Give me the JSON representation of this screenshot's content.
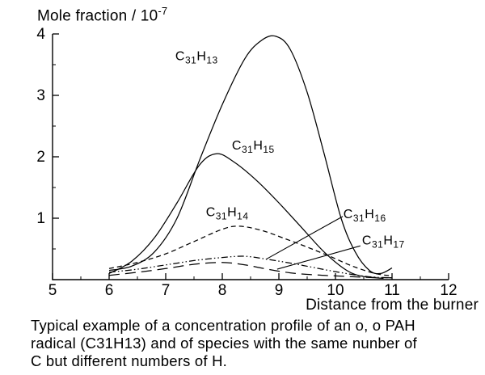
{
  "page": {
    "background": "#ffffff",
    "ink": "#000000"
  },
  "chart_data": {
    "type": "line",
    "title": {
      "text": "Mole fraction / 10",
      "exponent": "-7"
    },
    "xlabel": "Distance from the burner",
    "ylabel": "Mole fraction / 10^-7",
    "xlim": [
      5,
      12
    ],
    "ylim": [
      0,
      4
    ],
    "x_major_ticks": [
      5,
      6,
      7,
      8,
      9,
      10,
      11,
      12
    ],
    "x_minor_ticks": [
      5.5,
      6.5,
      7.5,
      8.5,
      9.5,
      10.5,
      11.5
    ],
    "y_major_ticks": [
      1,
      2,
      3,
      4
    ],
    "y_minor_ticks": [
      0.5,
      1.5,
      2.5,
      3.5
    ],
    "grid": false,
    "legend": "inline-labels",
    "series": [
      {
        "name": "C31H13",
        "label": "C31H13",
        "line_style": "solid",
        "label_pos": [
          7.17,
          3.57
        ],
        "points": [
          [
            6.0,
            0.15
          ],
          [
            6.4,
            0.22
          ],
          [
            6.8,
            0.45
          ],
          [
            7.2,
            1.0
          ],
          [
            7.6,
            1.95
          ],
          [
            8.0,
            2.85
          ],
          [
            8.4,
            3.6
          ],
          [
            8.7,
            3.9
          ],
          [
            8.95,
            3.96
          ],
          [
            9.2,
            3.75
          ],
          [
            9.5,
            3.05
          ],
          [
            9.8,
            2.05
          ],
          [
            10.1,
            1.0
          ],
          [
            10.35,
            0.45
          ],
          [
            10.6,
            0.15
          ],
          [
            10.8,
            0.1
          ],
          [
            11.0,
            0.19
          ]
        ]
      },
      {
        "name": "C31H15",
        "label": "C31H15",
        "line_style": "solid",
        "label_pos": [
          8.17,
          2.12
        ],
        "points": [
          [
            6.0,
            0.1
          ],
          [
            6.4,
            0.3
          ],
          [
            6.8,
            0.68
          ],
          [
            7.2,
            1.25
          ],
          [
            7.6,
            1.87
          ],
          [
            7.9,
            2.05
          ],
          [
            8.2,
            1.92
          ],
          [
            8.6,
            1.62
          ],
          [
            9.0,
            1.25
          ],
          [
            9.4,
            0.85
          ],
          [
            9.8,
            0.45
          ],
          [
            10.2,
            0.15
          ],
          [
            10.5,
            0.05
          ],
          [
            10.85,
            0.02
          ]
        ]
      },
      {
        "name": "C31H14",
        "label": "C31H14",
        "line_style": "dashed",
        "label_pos": [
          7.71,
          1.03
        ],
        "points": [
          [
            6.0,
            0.18
          ],
          [
            6.5,
            0.28
          ],
          [
            7.0,
            0.42
          ],
          [
            7.5,
            0.62
          ],
          [
            8.0,
            0.82
          ],
          [
            8.3,
            0.87
          ],
          [
            8.7,
            0.8
          ],
          [
            9.1,
            0.67
          ],
          [
            9.5,
            0.53
          ],
          [
            9.9,
            0.38
          ],
          [
            10.3,
            0.22
          ],
          [
            10.7,
            0.1
          ],
          [
            11.0,
            0.06
          ]
        ]
      },
      {
        "name": "C31H16",
        "label": "C31H16",
        "line_style": "dash-dot-dot",
        "label_pos": [
          10.14,
          1.0
        ],
        "points": [
          [
            6.0,
            0.12
          ],
          [
            6.5,
            0.17
          ],
          [
            7.0,
            0.24
          ],
          [
            7.5,
            0.31
          ],
          [
            8.0,
            0.36
          ],
          [
            8.4,
            0.38
          ],
          [
            8.8,
            0.33
          ],
          [
            9.2,
            0.27
          ],
          [
            9.6,
            0.2
          ],
          [
            10.0,
            0.13
          ],
          [
            10.4,
            0.07
          ],
          [
            10.7,
            0.04
          ],
          [
            11.0,
            0.03
          ]
        ]
      },
      {
        "name": "C31H17",
        "label": "C31H17",
        "line_style": "long-dash",
        "label_pos": [
          10.47,
          0.57
        ],
        "points": [
          [
            6.0,
            0.07
          ],
          [
            6.5,
            0.12
          ],
          [
            7.0,
            0.18
          ],
          [
            7.5,
            0.25
          ],
          [
            8.0,
            0.28
          ],
          [
            8.4,
            0.24
          ],
          [
            8.8,
            0.17
          ],
          [
            9.2,
            0.11
          ],
          [
            9.6,
            0.08
          ],
          [
            10.0,
            0.06
          ],
          [
            10.5,
            0.04
          ],
          [
            11.0,
            0.03
          ]
        ]
      }
    ],
    "leader_lines": [
      {
        "to_series": "C31H16",
        "from": [
          10.13,
          1.03
        ],
        "to": [
          8.77,
          0.33
        ]
      },
      {
        "to_series": "C31H17",
        "from": [
          10.44,
          0.55
        ],
        "to": [
          8.97,
          0.17
        ]
      }
    ]
  },
  "caption": {
    "lines": [
      "Typical example of a concentration profile of an o, o PAH",
      "radical (C31H13) and of species with the same nunber of",
      "C but different numbers of H."
    ]
  }
}
